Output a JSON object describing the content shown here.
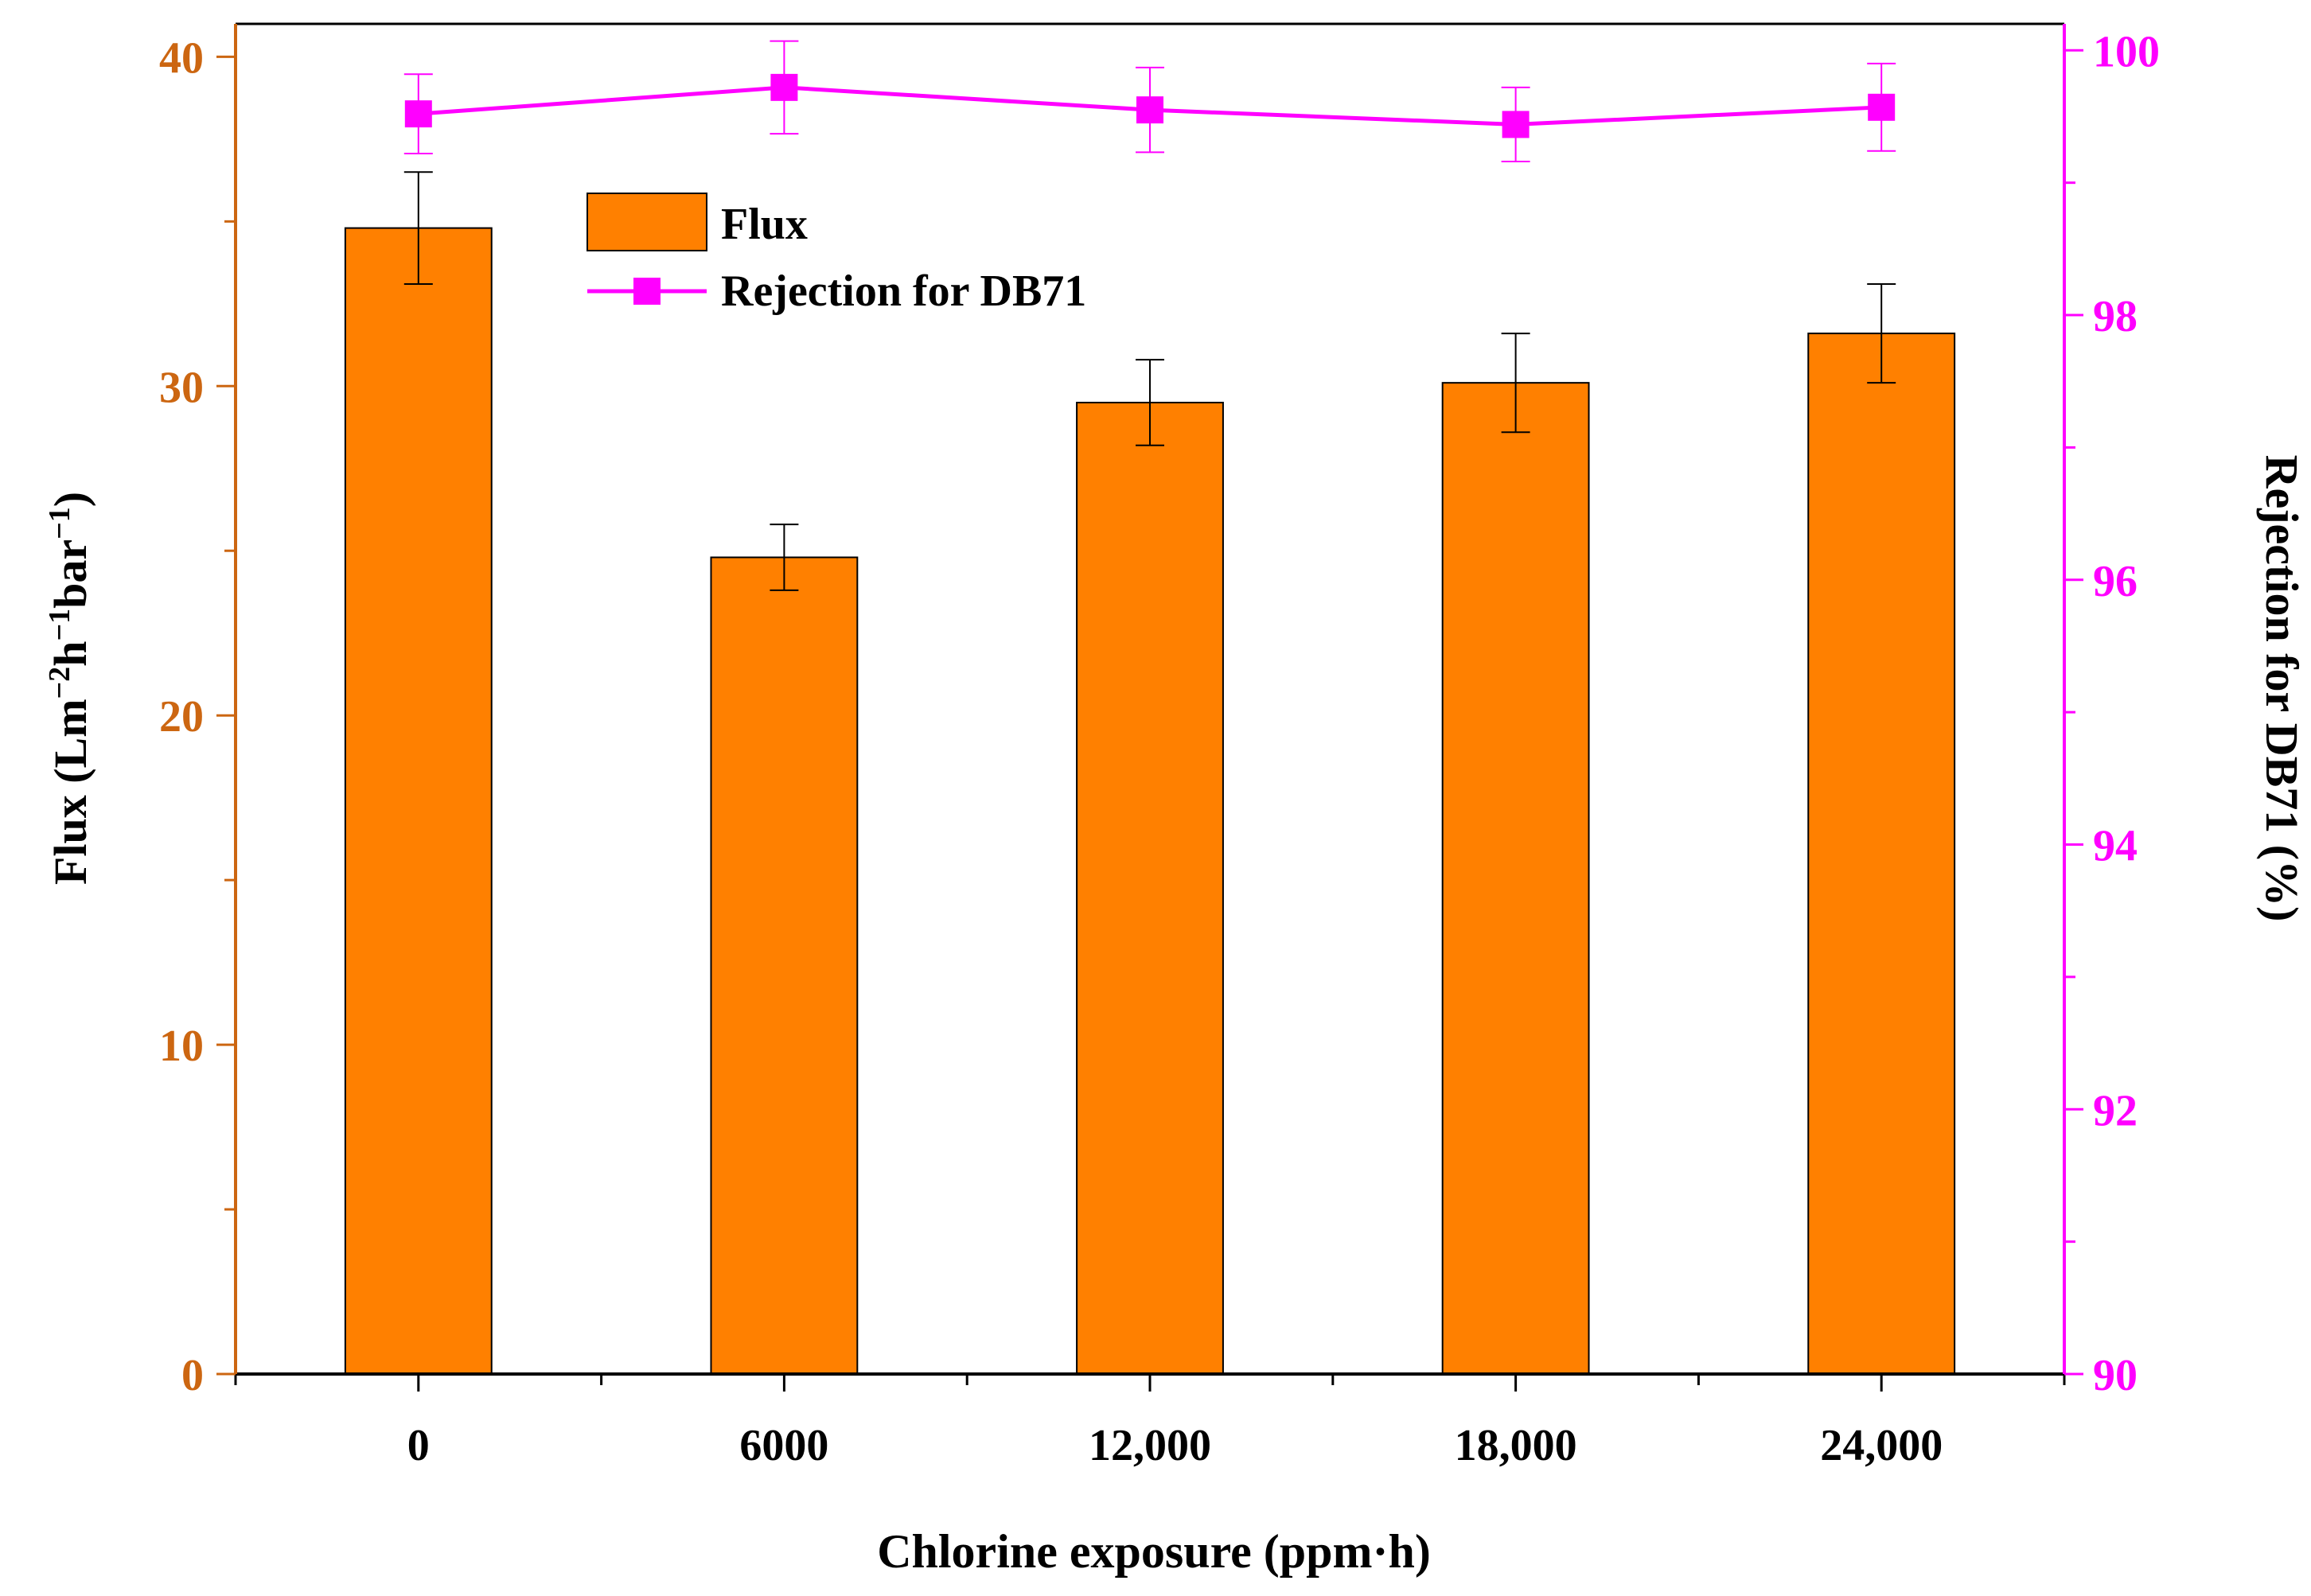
{
  "chart_data": {
    "type": "bar+line",
    "title": "",
    "xlabel": "Chlorine exposure (ppm·h)",
    "categories": [
      "0",
      "6000",
      "12,000",
      "18,000",
      "24,000"
    ],
    "y_left": {
      "label_base": "Flux (Lm",
      "label_sup1": "−2",
      "label_mid1": "h",
      "label_sup2": "−1",
      "label_mid2": "bar",
      "label_sup3": "−1",
      "label_end": ")",
      "range": [
        0,
        41
      ],
      "ticks": [
        0,
        10,
        20,
        30,
        40
      ],
      "color": "#cc6611"
    },
    "y_right": {
      "label": "Rejection for DB71 (%)",
      "range": [
        90,
        100.2
      ],
      "ticks": [
        90,
        92,
        94,
        96,
        98,
        100
      ],
      "color": "#ff00ff"
    },
    "series": [
      {
        "name": "Flux",
        "type": "bar",
        "axis": "left",
        "color": "#ff8000",
        "values": [
          34.8,
          24.8,
          29.5,
          30.1,
          31.6
        ],
        "errors": [
          1.7,
          1.0,
          1.3,
          1.5,
          1.5
        ]
      },
      {
        "name": "Rejection for DB71",
        "type": "line",
        "axis": "right",
        "color": "#ff00ff",
        "values": [
          99.52,
          99.72,
          99.55,
          99.44,
          99.57
        ],
        "errors": [
          0.3,
          0.35,
          0.32,
          0.28,
          0.33
        ]
      }
    ],
    "legend_position": "top-left-inside"
  }
}
